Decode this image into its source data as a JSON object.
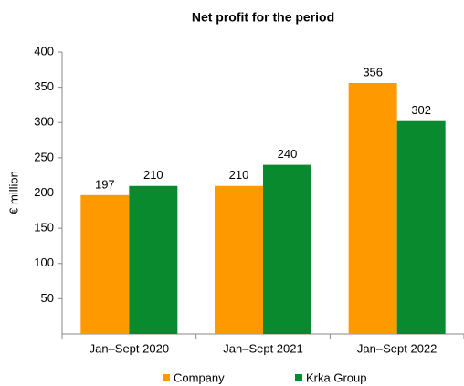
{
  "chart_data": {
    "type": "bar",
    "title": "Net profit for the period",
    "ylabel": "€ million",
    "categories": [
      "Jan–Sept 2020",
      "Jan–Sept 2021",
      "Jan–Sept 2022"
    ],
    "series": [
      {
        "name": "Company",
        "color": "#ff9900",
        "values": [
          197,
          210,
          356
        ]
      },
      {
        "name": "Krka Group",
        "color": "#0a8a2e",
        "values": [
          210,
          240,
          302
        ]
      }
    ],
    "ylim": [
      0,
      400
    ],
    "yticks": [
      50,
      100,
      150,
      200,
      250,
      300,
      350,
      400
    ],
    "legend": "bottom"
  }
}
